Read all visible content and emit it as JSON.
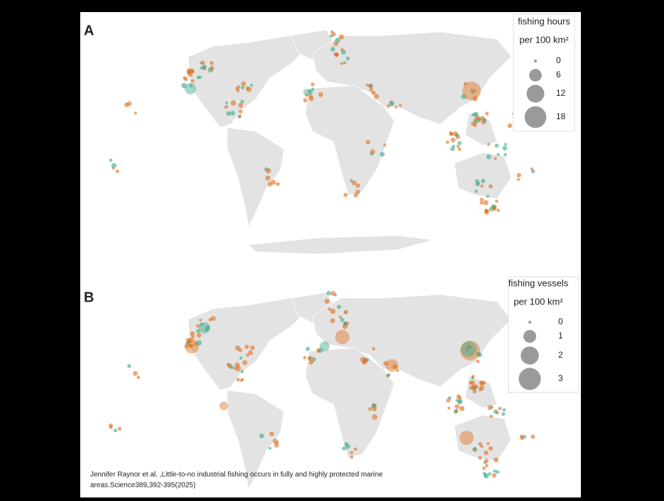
{
  "panels": [
    {
      "label": "A",
      "legend": {
        "title": "fishing hours",
        "unit": "per 100 km²",
        "sizes": [
          0,
          6,
          12,
          18
        ]
      }
    },
    {
      "label": "B",
      "legend": {
        "title": "fishing vessels",
        "unit": "per 100 km²",
        "sizes": [
          0,
          1,
          2,
          3
        ]
      }
    }
  ],
  "citation": [
    "Jennifer Raynor et al. ,Little-to-no industrial fishing occurs in fully and highly protected marine",
    "areas.Science389,392-395(2025)"
  ]
}
